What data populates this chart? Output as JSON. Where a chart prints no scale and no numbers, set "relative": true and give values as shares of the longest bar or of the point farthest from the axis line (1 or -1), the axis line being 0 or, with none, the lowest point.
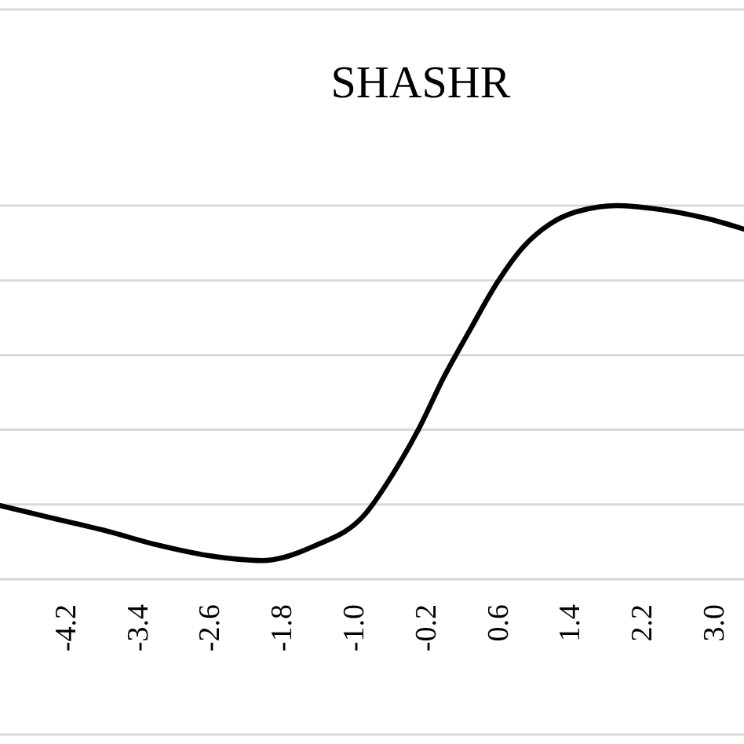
{
  "chart_data": {
    "type": "line",
    "title": "SHASHR",
    "relative": true,
    "grid": "y",
    "xlim": [
      -4.93,
      3.33
    ],
    "xticks": [
      {
        "value": -4.2,
        "label": "-4.2"
      },
      {
        "value": -3.4,
        "label": "-3.4"
      },
      {
        "value": -2.6,
        "label": "-2.6"
      },
      {
        "value": -1.8,
        "label": "-1.8"
      },
      {
        "value": -1.0,
        "label": "-1.0"
      },
      {
        "value": -0.2,
        "label": "-0.2"
      },
      {
        "value": 0.6,
        "label": "0.6"
      },
      {
        "value": 1.4,
        "label": "1.4"
      },
      {
        "value": 2.2,
        "label": "2.2"
      },
      {
        "value": 3.0,
        "label": "3.0"
      }
    ],
    "tick_labels": "x",
    "marker": "none",
    "line_style": "solid",
    "series": [
      {
        "color": "#000000",
        "x": [
          -4.93,
          -4.36,
          -3.76,
          -3.19,
          -2.61,
          -2.02,
          -1.45,
          -0.87,
          -0.58,
          -0.28,
          0.0,
          0.29,
          0.59,
          0.87,
          1.17,
          1.46,
          1.92,
          2.33,
          2.91,
          3.33
        ],
        "values": [
          0.197,
          0.164,
          0.13,
          0.092,
          0.063,
          0.05,
          0.088,
          0.176,
          0.277,
          0.403,
          0.542,
          0.668,
          0.794,
          0.887,
          0.95,
          0.983,
          1.0,
          0.992,
          0.966,
          0.937
        ]
      }
    ]
  }
}
